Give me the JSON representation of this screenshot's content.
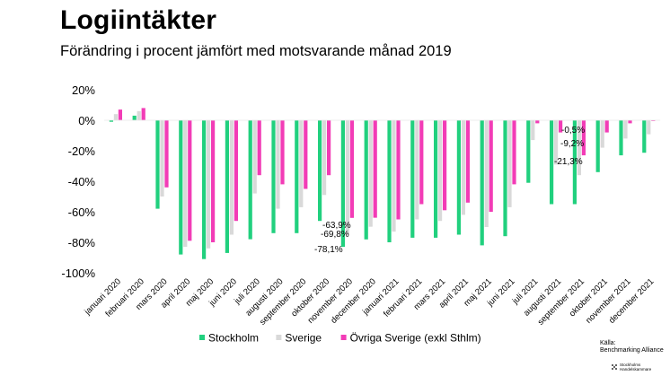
{
  "title": "Logiintäkter",
  "subtitle": "Förändring i procent jämfört med motsvarande månad 2019",
  "source": {
    "label": "Källa:",
    "name": "Benchmarking Alliance"
  },
  "logo": {
    "line1": "Stockholms",
    "line2": "Handelskammare"
  },
  "chart_data": {
    "type": "bar",
    "ylim": [
      -100,
      20
    ],
    "yticks": [
      20,
      0,
      -20,
      -40,
      -60,
      -80,
      -100
    ],
    "ytick_labels": [
      "20%",
      "0%",
      "-20%",
      "-40%",
      "-60%",
      "-80%",
      "-100%"
    ],
    "grid": false,
    "legend_position": "bottom",
    "colors": {
      "Stockholm": "#21d07e",
      "Sverige": "#d9d9d9",
      "Övriga Sverige (exkl Sthlm)": "#f23cb6"
    },
    "categories": [
      "januari 2020",
      "februari 2020",
      "mars 2020",
      "april 2020",
      "maj 2020",
      "juni 2020",
      "juli 2020",
      "augusti 2020",
      "september 2020",
      "oktober 2020",
      "november 2020",
      "december 2020",
      "januari 2021",
      "februari 2021",
      "mars 2021",
      "april 2021",
      "maj 2021",
      "juni 2021",
      "juli 2021",
      "augusti 2021",
      "september 2021",
      "oktober 2021",
      "november 2021",
      "december 2021"
    ],
    "series": [
      {
        "name": "Stockholm",
        "values": [
          -1,
          3,
          -58,
          -88,
          -91,
          -87,
          -78,
          -74,
          -74,
          -66,
          -83,
          -78.1,
          -80,
          -77,
          -77,
          -75,
          -82,
          -76,
          -41,
          -55,
          -55,
          -34,
          -23,
          -21.3
        ]
      },
      {
        "name": "Sverige",
        "values": [
          4,
          6,
          -50,
          -83,
          -84,
          -75,
          -48,
          -58,
          -57,
          -49,
          -75,
          -69.8,
          -73,
          -65,
          -66,
          -62,
          -70,
          -57,
          -13,
          -29,
          -36,
          -18,
          -12,
          -9.2
        ]
      },
      {
        "name": "Övriga Sverige (exkl Sthlm)",
        "values": [
          7,
          8,
          -44,
          -79,
          -80,
          -66,
          -36,
          -42,
          -45,
          -36,
          -64,
          -63.9,
          -65,
          -55,
          -59,
          -54,
          -60,
          -42,
          -2,
          -8,
          -23,
          -8,
          -2,
          -0.5
        ]
      }
    ],
    "annotations": [
      {
        "text": "-63,9%",
        "category": "december 2020",
        "series": "Övriga Sverige (exkl Sthlm)"
      },
      {
        "text": "-69,8%",
        "category": "december 2020",
        "series": "Sverige"
      },
      {
        "text": "-78,1%",
        "category": "december 2020",
        "series": "Stockholm"
      },
      {
        "text": "-0,5%",
        "category": "december 2021",
        "series": "Övriga Sverige (exkl Sthlm)"
      },
      {
        "text": "-9,2%",
        "category": "december 2021",
        "series": "Sverige"
      },
      {
        "text": "-21,3%",
        "category": "december 2021",
        "series": "Stockholm"
      }
    ]
  }
}
